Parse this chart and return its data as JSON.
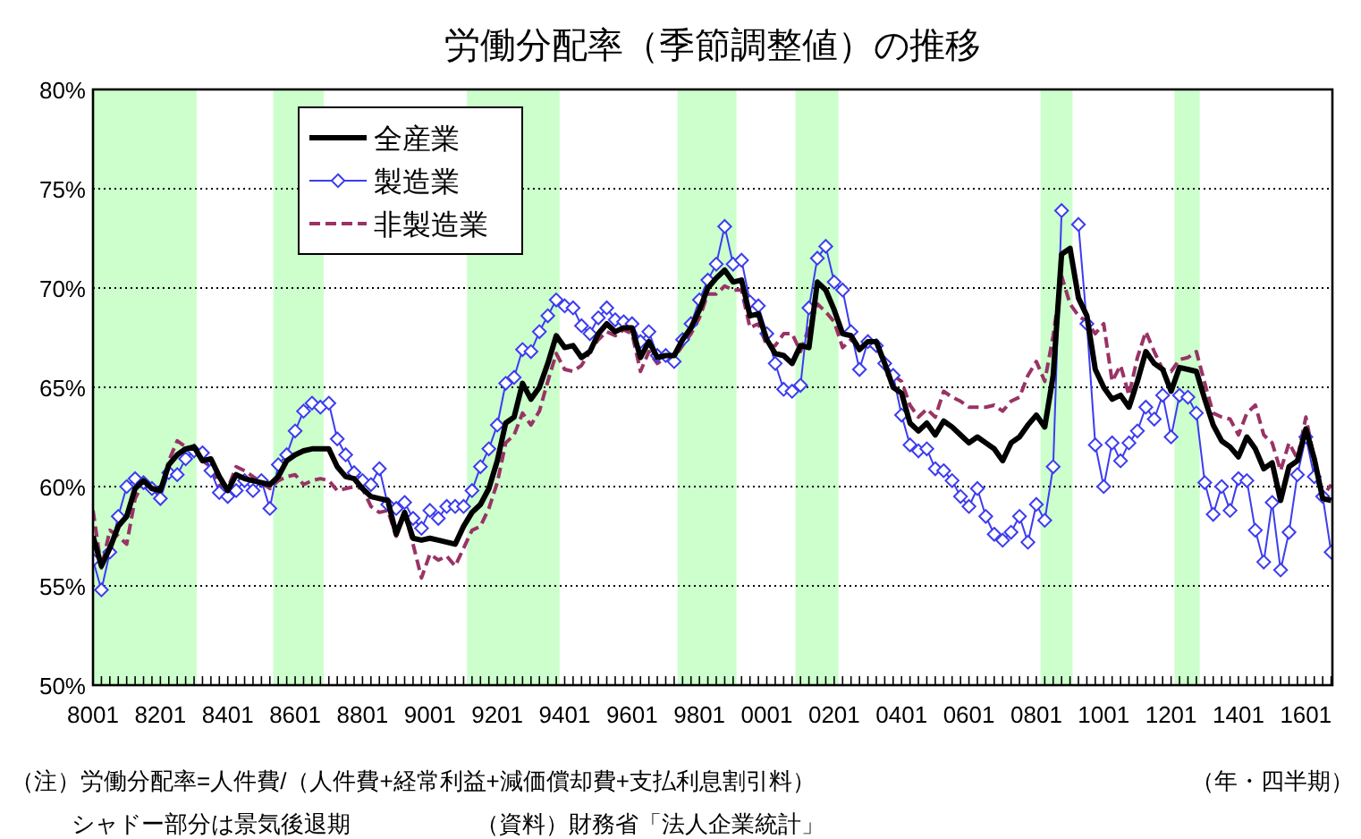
{
  "chart_data": {
    "type": "line",
    "title": "労働分配率（季節調整値）の推移",
    "xlabel": "（年・四半期）",
    "annotations": [
      "（注）労働分配率=人件費/（人件費+経常利益+減価償却費+支払利息割引料）",
      "シャドー部分は景気後退期",
      "（資料）財務省「法人企業統計」"
    ],
    "categories": [
      "8001",
      null,
      null,
      null,
      null,
      null,
      null,
      null,
      "8201",
      null,
      null,
      null,
      null,
      null,
      null,
      null,
      "8401",
      null,
      null,
      null,
      null,
      null,
      null,
      null,
      "8601",
      null,
      null,
      null,
      null,
      null,
      null,
      null,
      "8801",
      null,
      null,
      null,
      null,
      null,
      null,
      null,
      "9001",
      null,
      null,
      null,
      null,
      null,
      null,
      null,
      "9201",
      null,
      null,
      null,
      null,
      null,
      null,
      null,
      "9401",
      null,
      null,
      null,
      null,
      null,
      null,
      null,
      "9601",
      null,
      null,
      null,
      null,
      null,
      null,
      null,
      "9801",
      null,
      null,
      null,
      null,
      null,
      null,
      null,
      "0001",
      null,
      null,
      null,
      null,
      null,
      null,
      null,
      "0201",
      null,
      null,
      null,
      null,
      null,
      null,
      null,
      "0401",
      null,
      null,
      null,
      null,
      null,
      null,
      null,
      "0601",
      null,
      null,
      null,
      null,
      null,
      null,
      null,
      "0801",
      null,
      null,
      null,
      null,
      null,
      null,
      null,
      "1001",
      null,
      null,
      null,
      null,
      null,
      null,
      null,
      "1201",
      null,
      null,
      null,
      null,
      null,
      null,
      null,
      "1401",
      null,
      null,
      null,
      null,
      null,
      null,
      null,
      "1601",
      null,
      null,
      null
    ],
    "series": [
      {
        "name": "全産業",
        "color": "#000000",
        "marker": "none",
        "line_style": "solid",
        "values": [
          57.5,
          56.0,
          56.9,
          58.0,
          58.5,
          59.9,
          60.3,
          59.9,
          59.8,
          61.1,
          61.6,
          61.9,
          62.0,
          61.3,
          61.4,
          60.5,
          59.8,
          60.6,
          60.4,
          60.3,
          60.2,
          60.1,
          60.5,
          61.3,
          61.6,
          61.8,
          61.9,
          61.9,
          61.9,
          61.0,
          60.5,
          60.4,
          59.9,
          59.5,
          59.4,
          59.3,
          57.6,
          58.7,
          57.4,
          57.3,
          57.4,
          57.3,
          57.2,
          57.1,
          58.0,
          58.7,
          59.1,
          59.9,
          61.3,
          63.2,
          63.5,
          65.2,
          64.4,
          65.0,
          66.2,
          67.6,
          67.0,
          67.1,
          66.5,
          66.8,
          67.7,
          68.2,
          67.8,
          68.0,
          68.0,
          66.5,
          67.3,
          66.5,
          66.6,
          66.6,
          67.4,
          68.0,
          68.9,
          70.0,
          70.5,
          70.9,
          70.3,
          70.4,
          68.6,
          68.7,
          67.4,
          66.7,
          66.6,
          66.2,
          67.1,
          67.0,
          70.3,
          69.9,
          68.9,
          67.7,
          67.6,
          66.9,
          67.3,
          67.3,
          66.2,
          65.0,
          64.7,
          63.2,
          62.8,
          63.2,
          62.6,
          63.3,
          63.0,
          62.6,
          62.2,
          62.5,
          62.2,
          61.9,
          61.3,
          62.2,
          62.5,
          63.1,
          63.6,
          63.0,
          65.6,
          71.7,
          72.0,
          69.5,
          68.6,
          65.9,
          65.0,
          64.4,
          64.6,
          64.0,
          65.3,
          66.8,
          66.2,
          65.9,
          64.8,
          66.0,
          65.9,
          65.8,
          64.4,
          63.1,
          62.3,
          62.0,
          61.5,
          62.5,
          61.9,
          60.9,
          61.2,
          59.3,
          61.0,
          61.3,
          62.9,
          61.4,
          59.4,
          59.3
        ]
      },
      {
        "name": "製造業",
        "color": "#3c3cf0",
        "marker": "diamond",
        "line_style": "solid",
        "values": [
          56.3,
          54.8,
          56.7,
          58.5,
          60.0,
          60.4,
          60.2,
          59.9,
          59.4,
          60.7,
          60.6,
          61.4,
          61.8,
          61.7,
          60.8,
          59.7,
          59.5,
          59.8,
          60.3,
          59.8,
          60.3,
          58.9,
          61.1,
          61.6,
          62.8,
          63.8,
          64.2,
          64.0,
          64.2,
          62.4,
          61.6,
          60.7,
          60.3,
          60.1,
          60.9,
          59.1,
          58.9,
          59.2,
          58.4,
          57.9,
          58.8,
          58.4,
          59.0,
          59.0,
          59.0,
          59.8,
          61.0,
          61.9,
          63.1,
          65.2,
          65.5,
          66.9,
          66.8,
          67.8,
          68.6,
          69.4,
          69.1,
          69.0,
          68.1,
          67.7,
          68.5,
          69.0,
          68.4,
          68.3,
          68.2,
          67.3,
          67.8,
          66.6,
          66.6,
          66.3,
          67.4,
          68.2,
          69.4,
          70.4,
          71.2,
          73.1,
          71.2,
          71.4,
          69.3,
          69.1,
          67.7,
          66.2,
          64.9,
          64.8,
          65.1,
          69.0,
          71.5,
          72.1,
          70.3,
          69.9,
          67.8,
          65.9,
          67.3,
          67.1,
          66.2,
          65.6,
          63.6,
          62.1,
          61.8,
          61.9,
          60.9,
          60.8,
          60.3,
          59.5,
          59.0,
          59.9,
          58.5,
          57.6,
          57.3,
          57.7,
          58.5,
          57.2,
          59.1,
          58.3,
          61.0,
          73.9,
          null,
          73.2,
          68.2,
          62.1,
          60.0,
          62.2,
          61.3,
          62.2,
          62.8,
          64.0,
          63.4,
          64.6,
          62.5,
          64.6,
          64.5,
          63.7,
          60.2,
          58.6,
          60.0,
          58.8,
          60.4,
          60.3,
          57.8,
          56.2,
          59.2,
          55.8,
          57.7,
          60.6,
          62.5,
          60.5,
          59.5,
          56.7
        ]
      },
      {
        "name": "非製造業",
        "color": "#993366",
        "marker": "none",
        "line_style": "dashed",
        "values": [
          58.8,
          55.9,
          57.8,
          57.5,
          57.1,
          59.4,
          60.2,
          59.9,
          59.6,
          61.3,
          62.3,
          62.0,
          61.8,
          61.3,
          61.0,
          60.1,
          59.9,
          61.0,
          60.8,
          60.5,
          60.2,
          59.9,
          60.3,
          60.5,
          60.6,
          60.1,
          60.3,
          60.4,
          60.3,
          59.8,
          59.9,
          60.0,
          59.9,
          59.0,
          58.7,
          58.8,
          57.5,
          58.7,
          57.1,
          55.4,
          56.6,
          56.3,
          56.5,
          56.0,
          56.9,
          57.8,
          58.0,
          58.9,
          60.2,
          62.2,
          62.6,
          63.7,
          63.1,
          63.8,
          65.3,
          66.7,
          65.9,
          65.8,
          66.1,
          66.8,
          67.4,
          67.8,
          67.6,
          67.9,
          67.7,
          65.8,
          66.8,
          66.2,
          66.5,
          66.5,
          67.1,
          67.7,
          68.5,
          69.7,
          69.7,
          70.1,
          69.9,
          69.9,
          68.0,
          68.2,
          67.1,
          67.1,
          67.7,
          67.7,
          66.8,
          68.0,
          69.2,
          68.8,
          68.3,
          67.0,
          67.4,
          67.1,
          67.1,
          67.1,
          66.1,
          65.6,
          65.3,
          64.1,
          63.5,
          63.9,
          63.5,
          64.8,
          64.5,
          64.3,
          64.0,
          64.0,
          64.0,
          64.1,
          63.8,
          64.3,
          64.5,
          65.6,
          66.3,
          65.3,
          67.6,
          70.6,
          69.2,
          68.6,
          68.3,
          67.7,
          68.2,
          65.3,
          66.1,
          64.6,
          66.5,
          67.8,
          66.8,
          65.9,
          65.8,
          66.4,
          66.5,
          66.8,
          65.2,
          63.7,
          63.5,
          63.4,
          62.6,
          63.7,
          64.1,
          62.6,
          62.2,
          60.8,
          62.2,
          61.4,
          63.5,
          61.4,
          59.5,
          60.1
        ]
      }
    ],
    "ylim": [
      50,
      80
    ],
    "yticks": [
      {
        "value": 50,
        "label": "50%"
      },
      {
        "value": 55,
        "label": "55%"
      },
      {
        "value": 60,
        "label": "60%"
      },
      {
        "value": 65,
        "label": "65%"
      },
      {
        "value": 70,
        "label": "70%"
      },
      {
        "value": 75,
        "label": "75%"
      },
      {
        "value": 80,
        "label": "80%"
      }
    ],
    "grid": "y",
    "legend": "top left"
  }
}
